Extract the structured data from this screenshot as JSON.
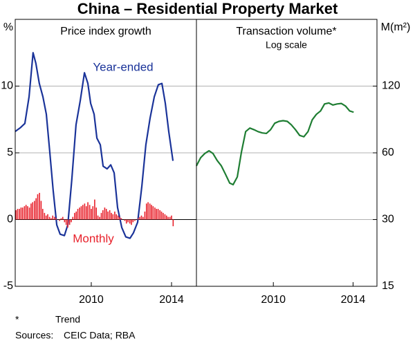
{
  "title": "China – Residential Property Market",
  "footnote": {
    "marker": "*",
    "text": "Trend"
  },
  "sources": {
    "label": "Sources:",
    "text": "CEIC Data; RBA"
  },
  "chart_data": [
    {
      "type": "line",
      "title": "Price index growth",
      "ylabel": "%",
      "xlim": [
        2006.21,
        2015.24
      ],
      "xticks": [
        2010,
        2014
      ],
      "ylim": [
        -5,
        15
      ],
      "yticks": [
        -5,
        0,
        5,
        10
      ],
      "grid": true,
      "log_scale": false,
      "series": [
        {
          "name": "Year-ended",
          "type": "line",
          "color": "#1a3399",
          "x": [
            2006.21,
            2006.48,
            2006.69,
            2006.9,
            2007.1,
            2007.24,
            2007.41,
            2007.59,
            2007.76,
            2007.93,
            2008.1,
            2008.28,
            2008.45,
            2008.66,
            2008.83,
            2009.03,
            2009.24,
            2009.45,
            2009.66,
            2009.83,
            2009.97,
            2010.14,
            2010.28,
            2010.45,
            2010.59,
            2010.79,
            2010.97,
            2011.14,
            2011.31,
            2011.52,
            2011.72,
            2011.93,
            2012.1,
            2012.31,
            2012.52,
            2012.72,
            2012.93,
            2013.14,
            2013.34,
            2013.52,
            2013.69,
            2013.86,
            2014.07
          ],
          "values": [
            6.6,
            6.9,
            7.2,
            9.2,
            12.5,
            11.7,
            10.2,
            9.2,
            7.9,
            5.1,
            2.2,
            -0.4,
            -1.1,
            -1.2,
            -0.4,
            3.0,
            7.1,
            8.9,
            11.0,
            10.2,
            8.7,
            7.9,
            6.1,
            5.6,
            4.0,
            3.8,
            4.1,
            3.5,
            0.9,
            -0.6,
            -1.3,
            -1.4,
            -1.0,
            -0.2,
            2.5,
            5.6,
            7.6,
            9.2,
            10.1,
            10.2,
            8.7,
            6.6,
            4.4
          ]
        },
        {
          "name": "Monthly",
          "type": "bar",
          "color": "#e8202a",
          "x": [
            2006.25,
            2006.33,
            2006.42,
            2006.5,
            2006.58,
            2006.67,
            2006.75,
            2006.83,
            2006.92,
            2007.0,
            2007.08,
            2007.17,
            2007.25,
            2007.33,
            2007.42,
            2007.5,
            2007.58,
            2007.67,
            2007.75,
            2007.83,
            2007.92,
            2008.0,
            2008.08,
            2008.17,
            2008.25,
            2008.33,
            2008.42,
            2008.5,
            2008.58,
            2008.67,
            2008.75,
            2008.83,
            2008.92,
            2009.0,
            2009.08,
            2009.17,
            2009.25,
            2009.33,
            2009.42,
            2009.5,
            2009.58,
            2009.67,
            2009.75,
            2009.83,
            2009.92,
            2010.0,
            2010.08,
            2010.17,
            2010.25,
            2010.33,
            2010.42,
            2010.5,
            2010.58,
            2010.67,
            2010.75,
            2010.83,
            2010.92,
            2011.0,
            2011.08,
            2011.17,
            2011.25,
            2011.33,
            2011.42,
            2011.5,
            2011.58,
            2011.67,
            2011.75,
            2011.83,
            2011.92,
            2012.0,
            2012.08,
            2012.17,
            2012.25,
            2012.33,
            2012.42,
            2012.5,
            2012.58,
            2012.67,
            2012.75,
            2012.83,
            2012.92,
            2013.0,
            2013.08,
            2013.17,
            2013.25,
            2013.33,
            2013.42,
            2013.5,
            2013.58,
            2013.67,
            2013.75,
            2013.83,
            2013.92,
            2014.0,
            2014.08
          ],
          "values": [
            0.7,
            0.8,
            0.8,
            0.9,
            0.9,
            1.0,
            1.1,
            1.0,
            0.9,
            1.2,
            1.3,
            1.4,
            1.6,
            1.9,
            2.0,
            1.4,
            0.8,
            0.5,
            0.3,
            0.4,
            0.2,
            0.1,
            0.3,
            0.2,
            0.1,
            0.0,
            -0.1,
            0.1,
            0.2,
            -0.2,
            -0.4,
            -0.6,
            -0.4,
            -0.2,
            0.2,
            0.5,
            0.6,
            0.8,
            0.9,
            1.0,
            1.1,
            1.2,
            1.0,
            1.3,
            1.1,
            0.8,
            1.0,
            1.5,
            0.9,
            0.3,
            0.2,
            0.5,
            0.7,
            0.9,
            0.8,
            0.6,
            0.7,
            0.5,
            0.4,
            0.6,
            0.4,
            0.3,
            0.2,
            0.1,
            0.0,
            -0.1,
            -0.3,
            -0.2,
            -0.3,
            -0.4,
            -0.2,
            -0.1,
            0.0,
            0.1,
            0.2,
            0.3,
            0.2,
            0.6,
            1.2,
            1.3,
            1.2,
            1.1,
            1.0,
            0.9,
            0.8,
            0.8,
            0.7,
            0.6,
            0.5,
            0.4,
            0.3,
            0.2,
            0.2,
            0.3,
            -0.5
          ]
        }
      ]
    },
    {
      "type": "line",
      "title": "Transaction volume*",
      "subtitle": "Log scale",
      "ylabel": "M(m²)",
      "xlim": [
        2006.14,
        2015.2
      ],
      "xticks": [
        2010,
        2014
      ],
      "ylim": [
        15,
        240
      ],
      "yticks": [
        15,
        30,
        60,
        120
      ],
      "grid": true,
      "log_scale": true,
      "series": [
        {
          "type": "line",
          "color": "#1e7d32",
          "x": [
            2006.14,
            2006.35,
            2006.56,
            2006.77,
            2006.97,
            2007.18,
            2007.39,
            2007.6,
            2007.81,
            2007.98,
            2008.19,
            2008.4,
            2008.61,
            2008.82,
            2009.03,
            2009.23,
            2009.44,
            2009.65,
            2009.86,
            2010.07,
            2010.28,
            2010.49,
            2010.7,
            2010.9,
            2011.11,
            2011.32,
            2011.53,
            2011.74,
            2011.95,
            2012.16,
            2012.37,
            2012.57,
            2012.78,
            2012.99,
            2013.2,
            2013.41,
            2013.62,
            2013.83,
            2014.03
          ],
          "values": [
            52.4,
            57,
            59.6,
            61.3,
            59.6,
            55.4,
            52.4,
            48,
            43.8,
            43.1,
            46.7,
            60.6,
            74.8,
            77.6,
            76.3,
            74.8,
            73.8,
            73.4,
            76.3,
            81.6,
            83.2,
            83.8,
            83.2,
            80.3,
            76.3,
            71.9,
            70.9,
            74.8,
            84.5,
            89.5,
            92.7,
            99.7,
            100.7,
            98.6,
            99.7,
            100.2,
            97.6,
            92.7,
            91.5
          ]
        }
      ]
    }
  ]
}
